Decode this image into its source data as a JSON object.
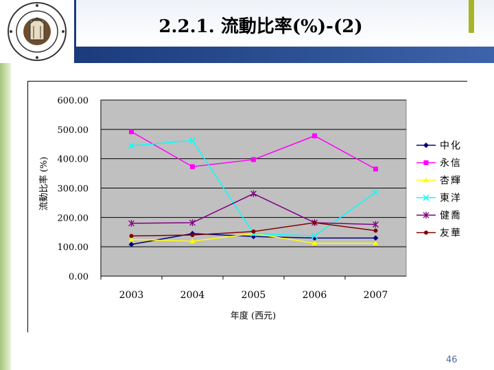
{
  "title": "2.2.1. 流動比率(%)-(2)",
  "page_number": "46",
  "colors": {
    "header_dark": "#1b3b7c",
    "accent_green": "#a8b428",
    "plot_bg": "#c0c0c0"
  },
  "logo": {
    "text": "國立台灣大學"
  },
  "chart_data": {
    "type": "line",
    "title": "",
    "xlabel": "年度 (西元)",
    "ylabel": "流動比率 (%)",
    "categories": [
      "2003",
      "2004",
      "2005",
      "2006",
      "2007"
    ],
    "ylim": [
      0,
      600
    ],
    "yticks": [
      "0.00",
      "100.00",
      "200.00",
      "300.00",
      "400.00",
      "500.00",
      "600.00"
    ],
    "grid": true,
    "legend": "right",
    "series": [
      {
        "name": "中化",
        "values": [
          108,
          145,
          135,
          130,
          130
        ],
        "color": "#000080",
        "marker": "diamond"
      },
      {
        "name": "永信",
        "values": [
          492,
          373,
          397,
          478,
          365
        ],
        "color": "#ff00ff",
        "marker": "square"
      },
      {
        "name": "杏輝",
        "values": [
          125,
          119,
          145,
          112,
          112
        ],
        "color": "#ffff00",
        "marker": "triangle"
      },
      {
        "name": "東洋",
        "values": [
          444,
          462,
          145,
          137,
          286
        ],
        "color": "#00ffff",
        "marker": "x"
      },
      {
        "name": "健喬",
        "values": [
          180,
          182,
          281,
          182,
          176
        ],
        "color": "#800080",
        "marker": "star"
      },
      {
        "name": "友華",
        "values": [
          137,
          140,
          152,
          182,
          155
        ],
        "color": "#800000",
        "marker": "circle"
      }
    ]
  }
}
